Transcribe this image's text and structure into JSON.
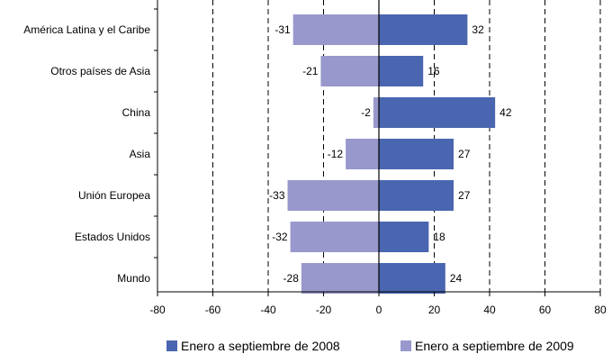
{
  "chart_data": {
    "type": "bar",
    "orientation": "horizontal",
    "categories": [
      "América Latina y el Caribe",
      "Otros países de Asia",
      "China",
      "Asia",
      "Unión Europea",
      "Estados Unidos",
      "Mundo"
    ],
    "series": [
      {
        "name": "Enero a septiembre de 2008",
        "values": [
          32,
          16,
          42,
          27,
          27,
          18,
          24
        ],
        "color": "#4a66b0"
      },
      {
        "name": "Enero a septiembre de 2009",
        "values": [
          -31,
          -21,
          -2,
          -12,
          -33,
          -32,
          -28
        ],
        "color": "#9898cc"
      }
    ],
    "data_labels_2008": [
      "32",
      "16",
      "42",
      "27",
      "27",
      "18",
      "24"
    ],
    "data_labels_2009": [
      "-31",
      "-21",
      "-2",
      "-12",
      "-33",
      "-32",
      "-28"
    ],
    "xlim": [
      -80,
      80
    ],
    "xticks": [
      -80,
      -60,
      -40,
      -20,
      0,
      20,
      40,
      60,
      80
    ],
    "xtick_labels": [
      "-80",
      "-60",
      "-40",
      "-20",
      "0",
      "20",
      "40",
      "60",
      "80"
    ],
    "grid": "vertical dashed",
    "legend_position": "bottom"
  }
}
